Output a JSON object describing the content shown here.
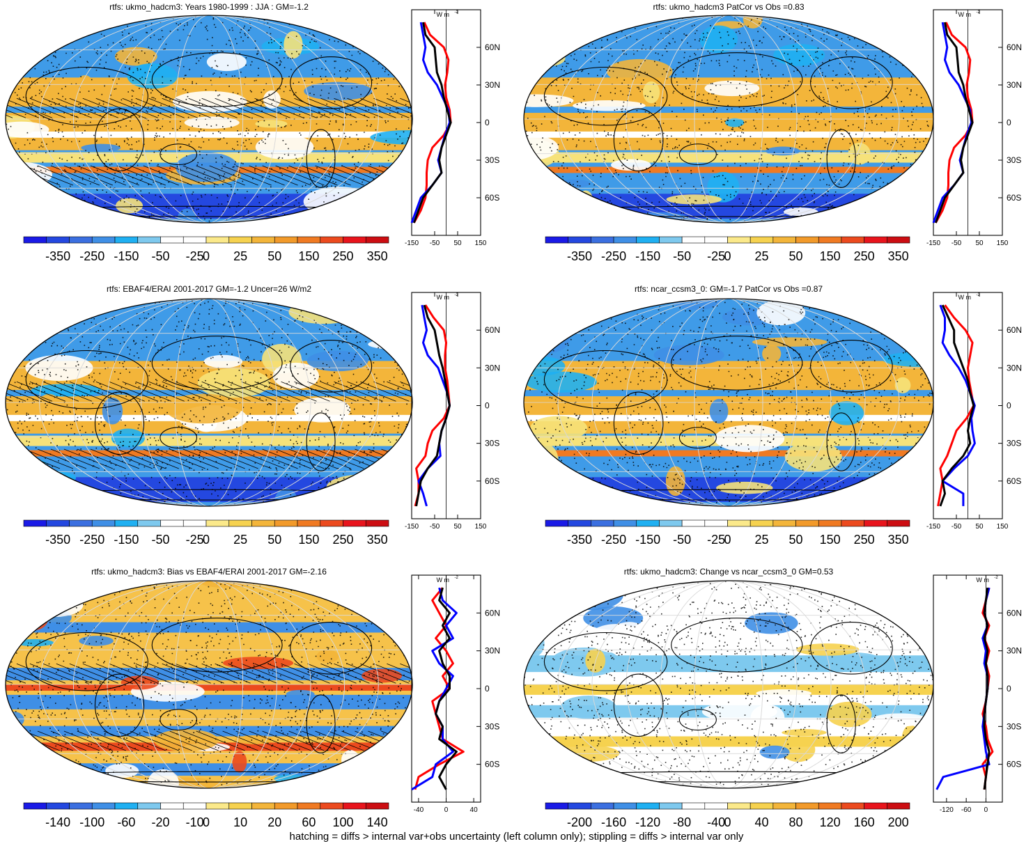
{
  "footnote": "hatching = diffs > internal var+obs uncertainty (left column only); stippling = diffs > internal var only",
  "colors": {
    "blue_dark": "#2a2ae0",
    "blue": "#3f8fe6",
    "cyan": "#1aaef0",
    "white": "#ffffff",
    "yellow": "#f6e27a",
    "orange": "#f3b53a",
    "red": "#e8141c",
    "zonal_obs": "#ff0000",
    "zonal_model": "#0000ff",
    "zonal_diff": "#000000"
  },
  "chart_data": [
    {
      "type": "heatmap",
      "title": "rtfs: ukmo_hadcm3: Years 1980-1999 : JJA : GM=-1.2",
      "colorbar_labels": [
        "-350",
        "-250",
        "-150",
        "-50",
        "-25",
        "0",
        "25",
        "50",
        "150",
        "250",
        "350"
      ],
      "zonal": {
        "unit": "W m",
        "unit_sup": "-2",
        "xticks": [
          "-150",
          "-50",
          "50",
          "150"
        ],
        "xlim": [
          -150,
          150
        ],
        "yticks": [
          "60N",
          "30N",
          "0",
          "30S",
          "60S"
        ],
        "lat": [
          80,
          70,
          60,
          50,
          40,
          30,
          20,
          10,
          0,
          -10,
          -20,
          -30,
          -40,
          -50,
          -60,
          -70,
          -80
        ],
        "series": [
          {
            "name": "",
            "color": "#ff0000",
            "values": [
              -95,
              -70,
              -10,
              10,
              5,
              -5,
              0,
              15,
              20,
              -10,
              -60,
              -80,
              -85,
              -85,
              -90,
              -110,
              -140
            ]
          },
          {
            "name": "",
            "color": "#0000ff",
            "values": [
              -110,
              -100,
              -90,
              -100,
              -80,
              -40,
              -15,
              10,
              15,
              -5,
              -20,
              -35,
              -20,
              -60,
              -110,
              -130,
              -150
            ]
          },
          {
            "name": "",
            "color": "#000000",
            "values": [
              -100,
              -90,
              -50,
              -45,
              -40,
              -20,
              -10,
              5,
              20,
              0,
              -20,
              -30,
              -20,
              -60,
              -100,
              -120,
              -140
            ]
          }
        ]
      }
    },
    {
      "type": "heatmap",
      "title": "rtfs: ukmo_hadcm3 PatCor vs Obs =0.83",
      "colorbar_labels": [
        "-350",
        "-250",
        "-150",
        "-50",
        "-25",
        "0",
        "25",
        "50",
        "150",
        "250",
        "350"
      ],
      "zonal": {
        "unit": "W m",
        "unit_sup": "-2",
        "xticks": [
          "-150",
          "-50",
          "50",
          "150"
        ],
        "xlim": [
          -150,
          150
        ],
        "yticks": [
          "60N",
          "30N",
          "0",
          "30S",
          "60S"
        ],
        "lat": [
          80,
          70,
          60,
          50,
          40,
          30,
          20,
          10,
          0,
          -10,
          -20,
          -30,
          -40,
          -50,
          -60,
          -70,
          -80
        ],
        "series": [
          {
            "name": "",
            "color": "#ff0000",
            "values": [
              -95,
              -70,
              -10,
              10,
              5,
              -5,
              0,
              15,
              20,
              -10,
              -60,
              -80,
              -85,
              -85,
              -90,
              -110,
              -140
            ]
          },
          {
            "name": "",
            "color": "#0000ff",
            "values": [
              -110,
              -100,
              -90,
              -100,
              -80,
              -40,
              -15,
              10,
              15,
              -5,
              -20,
              -35,
              -20,
              -60,
              -110,
              -130,
              -150
            ]
          },
          {
            "name": "",
            "color": "#000000",
            "values": [
              -100,
              -90,
              -50,
              -45,
              -40,
              -20,
              -10,
              5,
              20,
              0,
              -20,
              -30,
              -20,
              -60,
              -100,
              -120,
              -140
            ]
          }
        ]
      }
    },
    {
      "type": "heatmap",
      "title": "rtfs: EBAF4/ERAI 2001-2017 GM=-1.2 Uncer=26 W/m2",
      "colorbar_labels": [
        "-350",
        "-250",
        "-150",
        "-50",
        "-25",
        "0",
        "25",
        "50",
        "150",
        "250",
        "350"
      ],
      "zonal": {
        "unit": "W m",
        "unit_sup": "-2",
        "xticks": [
          "-150",
          "-50",
          "50",
          "150"
        ],
        "xlim": [
          -150,
          150
        ],
        "yticks": [
          "60N",
          "30N",
          "0",
          "30S",
          "60S"
        ],
        "lat": [
          80,
          70,
          60,
          50,
          40,
          30,
          20,
          10,
          0,
          -10,
          -20,
          -30,
          -40,
          -50,
          -60,
          -70,
          -80
        ],
        "series": [
          {
            "name": "",
            "color": "#ff0000",
            "values": [
              -90,
              -55,
              -10,
              0,
              -5,
              -5,
              5,
              10,
              15,
              -10,
              -60,
              -80,
              -90,
              -130,
              -120,
              -120,
              -135
            ]
          },
          {
            "name": "",
            "color": "#0000ff",
            "values": [
              -105,
              -95,
              -85,
              -100,
              -80,
              -35,
              -15,
              5,
              15,
              0,
              -20,
              -30,
              -25,
              -80,
              -120,
              -100,
              -85
            ]
          },
          {
            "name": "",
            "color": "#000000",
            "values": [
              -95,
              -80,
              -50,
              -40,
              -30,
              -15,
              -5,
              5,
              15,
              0,
              -20,
              -30,
              -40,
              -80,
              -110,
              -120,
              -130
            ]
          }
        ]
      }
    },
    {
      "type": "heatmap",
      "title": "rtfs: ncar_ccsm3_0: GM=-1.7 PatCor vs Obs =0.87",
      "colorbar_labels": [
        "-350",
        "-250",
        "-150",
        "-50",
        "-25",
        "0",
        "25",
        "50",
        "150",
        "250",
        "350"
      ],
      "zonal": {
        "unit": "W m",
        "unit_sup": "-2",
        "xticks": [
          "-150",
          "-50",
          "50",
          "150"
        ],
        "xlim": [
          -150,
          150
        ],
        "yticks": [
          "60N",
          "30N",
          "0",
          "30S",
          "60S"
        ],
        "lat": [
          80,
          70,
          60,
          50,
          40,
          30,
          20,
          10,
          0,
          -10,
          -20,
          -30,
          -40,
          -50,
          -60,
          -70,
          -80
        ],
        "series": [
          {
            "name": "",
            "color": "#ff0000",
            "values": [
              -100,
              -60,
              -10,
              20,
              10,
              0,
              5,
              15,
              25,
              -5,
              -50,
              -70,
              -90,
              -120,
              -110,
              -120,
              -130
            ]
          },
          {
            "name": "",
            "color": "#0000ff",
            "values": [
              -120,
              -100,
              -100,
              -110,
              -80,
              -40,
              -10,
              10,
              30,
              15,
              20,
              30,
              0,
              -60,
              -110,
              -20,
              -20
            ]
          },
          {
            "name": "",
            "color": "#000000",
            "values": [
              -110,
              -85,
              -60,
              -60,
              -40,
              -20,
              0,
              10,
              25,
              10,
              0,
              10,
              -20,
              -70,
              -110,
              -100,
              -120
            ]
          }
        ]
      }
    },
    {
      "type": "heatmap",
      "title": "rtfs: ukmo_hadcm3: Bias vs EBAF4/ERAI 2001-2017 GM=-2.16",
      "colorbar_labels": [
        "-140",
        "-100",
        "-60",
        "-20",
        "-10",
        "0",
        "10",
        "20",
        "60",
        "100",
        "140"
      ],
      "zonal": {
        "unit": "W m",
        "unit_sup": "-2",
        "xticks": [
          "-40",
          "0",
          "40"
        ],
        "xlim": [
          -50,
          50
        ],
        "yticks": [
          "60N",
          "30N",
          "0",
          "30S",
          "60S"
        ],
        "lat": [
          80,
          70,
          60,
          50,
          40,
          30,
          20,
          10,
          0,
          -10,
          -20,
          -30,
          -40,
          -50,
          -60,
          -70,
          -80
        ],
        "series": [
          {
            "name": "",
            "color": "#ff0000",
            "values": [
              -5,
              -20,
              -10,
              0,
              -15,
              0,
              10,
              -5,
              5,
              -20,
              -15,
              -10,
              -5,
              25,
              -10,
              -40,
              -45
            ]
          },
          {
            "name": "",
            "color": "#0000ff",
            "values": [
              -10,
              -5,
              15,
              0,
              10,
              -20,
              -10,
              10,
              0,
              -10,
              -15,
              -5,
              -5,
              10,
              -15,
              -20,
              -50
            ]
          },
          {
            "name": "",
            "color": "#000000",
            "values": [
              -5,
              -10,
              5,
              -5,
              5,
              -10,
              -5,
              5,
              5,
              -10,
              -15,
              -5,
              -10,
              15,
              0,
              -10,
              0
            ]
          }
        ]
      }
    },
    {
      "type": "heatmap",
      "title": "rtfs: ukmo_hadcm3: Change vs ncar_ccsm3_0 GM=0.53",
      "colorbar_labels": [
        "-200",
        "-160",
        "-120",
        "-80",
        "-40",
        "0",
        "40",
        "80",
        "120",
        "160",
        "200"
      ],
      "zonal": {
        "unit": "W m",
        "unit_sup": "-2",
        "xticks": [
          "-120",
          "-60",
          "0"
        ],
        "xlim": [
          -160,
          50
        ],
        "yticks": [
          "60N",
          "30N",
          "0",
          "30S",
          "60S"
        ],
        "lat": [
          80,
          70,
          60,
          50,
          40,
          30,
          20,
          10,
          0,
          -10,
          -20,
          -30,
          -40,
          -50,
          -60,
          -70,
          -80
        ],
        "series": [
          {
            "name": "",
            "color": "#ff0000",
            "values": [
              10,
              0,
              -10,
              10,
              -5,
              10,
              0,
              10,
              5,
              0,
              -10,
              0,
              5,
              20,
              -10,
              0,
              -5
            ]
          },
          {
            "name": "",
            "color": "#0000ff",
            "values": [
              10,
              0,
              -5,
              5,
              -10,
              0,
              -5,
              5,
              5,
              0,
              -5,
              -10,
              -5,
              0,
              10,
              -130,
              -150
            ]
          },
          {
            "name": "",
            "color": "#000000",
            "values": [
              5,
              0,
              -5,
              5,
              -5,
              5,
              0,
              5,
              5,
              0,
              -5,
              -5,
              0,
              10,
              5,
              0,
              -5
            ]
          }
        ]
      }
    }
  ]
}
